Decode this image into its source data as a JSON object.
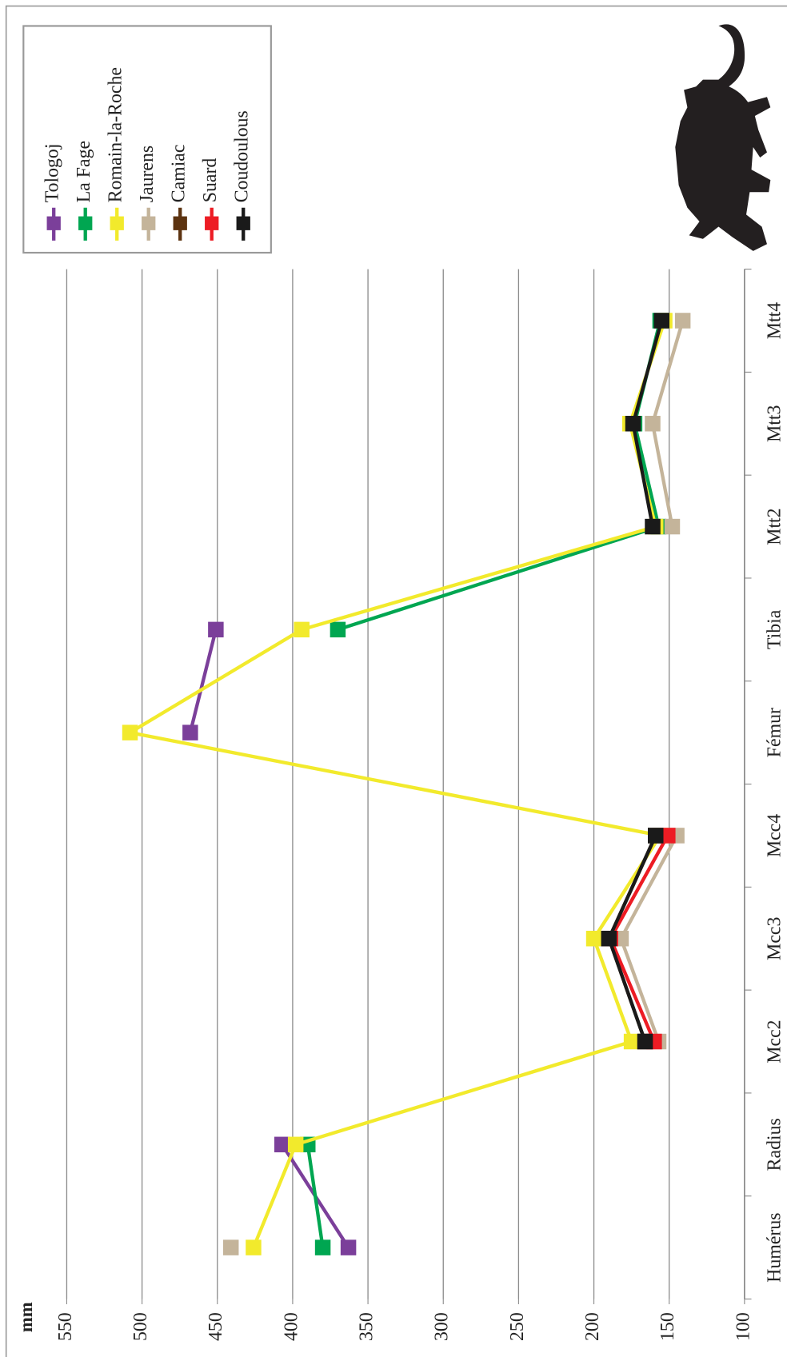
{
  "chart_data": {
    "type": "line",
    "y_label": "mm",
    "categories": [
      "Humérus",
      "Radius",
      "Mcc2",
      "Mcc3",
      "Mcc4",
      "Fémur",
      "Tibia",
      "Mtt2",
      "Mtt3",
      "Mtt4"
    ],
    "ylim": [
      100,
      550
    ],
    "yticks": [
      100,
      150,
      200,
      250,
      300,
      350,
      400,
      450,
      500,
      550
    ],
    "grid": true,
    "series": [
      {
        "name": "Tologoj",
        "color": "#7b3f9a",
        "values": [
          363,
          407,
          null,
          null,
          null,
          468,
          451,
          null,
          null,
          null
        ]
      },
      {
        "name": "La Fage",
        "color": "#00a651",
        "values": [
          380,
          390,
          null,
          null,
          null,
          null,
          370,
          157,
          173,
          156
        ]
      },
      {
        "name": "Romain-la-Roche",
        "color": "#f2ea2c",
        "values": [
          426,
          398,
          175,
          200,
          156,
          508,
          394,
          159,
          176,
          153
        ]
      },
      {
        "name": "Jaurens",
        "color": "#c4b49a",
        "values": [
          441,
          null,
          157,
          182,
          145,
          null,
          null,
          148,
          161,
          141
        ]
      },
      {
        "name": "Camiac",
        "color": "#5c3310",
        "values": [
          null,
          null,
          166,
          190,
          159,
          null,
          null,
          null,
          null,
          null
        ]
      },
      {
        "name": "Suard",
        "color": "#ed1c24",
        "values": [
          null,
          null,
          160,
          189,
          151,
          null,
          null,
          null,
          null,
          null
        ]
      },
      {
        "name": "Coudoulous",
        "color": "#1a1a1a",
        "values": [
          null,
          null,
          166,
          190,
          159,
          null,
          null,
          161,
          174,
          155
        ]
      }
    ]
  }
}
